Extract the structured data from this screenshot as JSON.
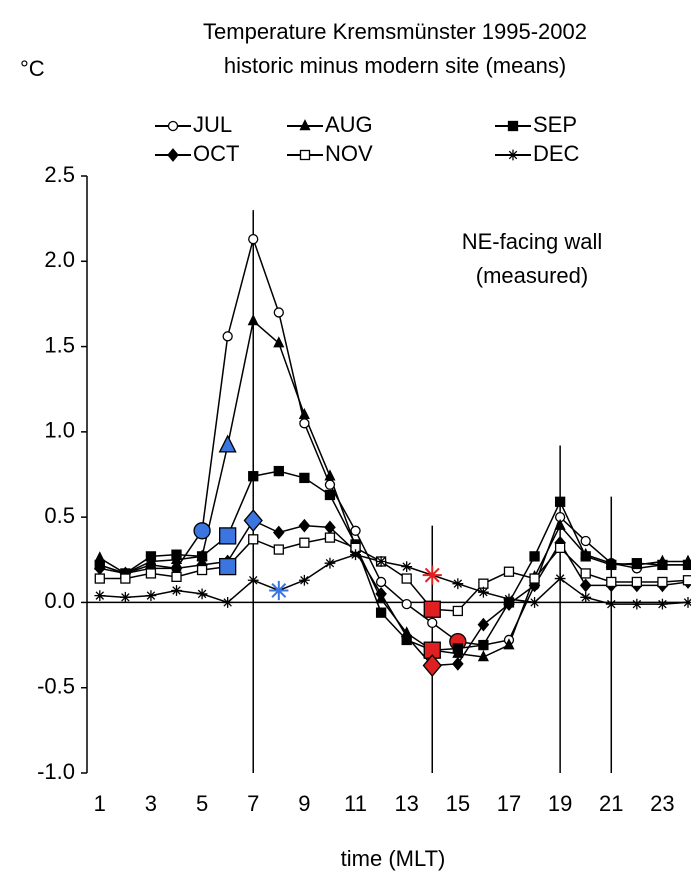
{
  "chart_data": {
    "type": "line",
    "title": [
      "Temperature Kremsmünster 1995-2002",
      "historic minus modern site (means)"
    ],
    "y_unit": "°C",
    "xlabel": "time (MLT)",
    "annotation": [
      "NE-facing wall",
      "(measured)"
    ],
    "x": [
      1,
      2,
      3,
      4,
      5,
      6,
      7,
      8,
      9,
      10,
      11,
      12,
      13,
      14,
      15,
      16,
      17,
      18,
      19,
      20,
      21,
      22,
      23,
      24
    ],
    "xlim": [
      0.5,
      24
    ],
    "xticks": [
      1,
      3,
      5,
      7,
      9,
      11,
      13,
      15,
      17,
      19,
      21,
      23
    ],
    "ylim": [
      -1,
      2.5
    ],
    "yticks": [
      {
        "value": -1,
        "label": "-1.0"
      },
      -0.5,
      {
        "value": 0,
        "label": "0.0"
      },
      0.5,
      {
        "value": 1,
        "label": "1.0"
      },
      1.5,
      {
        "value": 2,
        "label": "2.0"
      },
      2.5
    ],
    "grid": false,
    "color": "#000000",
    "vlines": [
      {
        "x": 7,
        "top": 2.3
      },
      {
        "x": 14,
        "top": 0.45
      },
      {
        "x": 19,
        "top": 0.92
      },
      {
        "x": 21,
        "top": 0.62
      }
    ],
    "series": [
      {
        "name": "JUL",
        "marker": "circle-open",
        "values": [
          0.22,
          0.17,
          0.22,
          0.2,
          0.42,
          1.56,
          2.13,
          1.7,
          1.05,
          0.69,
          0.42,
          0.12,
          -0.01,
          -0.12,
          -0.23,
          -0.25,
          -0.22,
          0.1,
          0.5,
          0.36,
          0.23,
          0.2,
          0.22,
          0.22
        ],
        "highlight_indices": [
          4,
          14
        ],
        "highlight_colors": [
          "#3a75e0",
          "#e02020"
        ]
      },
      {
        "name": "AUG",
        "marker": "triangle",
        "values": [
          0.26,
          0.17,
          0.24,
          0.25,
          0.27,
          0.92,
          1.65,
          1.52,
          1.1,
          0.74,
          0.33,
          0.02,
          -0.18,
          -0.28,
          -0.3,
          -0.32,
          -0.25,
          0.15,
          0.45,
          0.28,
          0.23,
          0.22,
          0.24,
          0.24
        ],
        "highlight_indices": [
          5,
          13
        ],
        "highlight_colors": [
          "#3a75e0",
          "#e02020"
        ]
      },
      {
        "name": "SEP",
        "marker": "square",
        "values": [
          0.22,
          0.17,
          0.27,
          0.28,
          0.27,
          0.39,
          0.74,
          0.77,
          0.73,
          0.63,
          0.34,
          -0.06,
          -0.22,
          -0.28,
          -0.27,
          -0.25,
          0.0,
          0.27,
          0.59,
          0.27,
          0.22,
          0.23,
          0.22,
          0.22
        ],
        "highlight_indices": [
          5,
          13
        ],
        "highlight_colors": [
          "#3a75e0",
          "#e02020"
        ]
      },
      {
        "name": "OCT",
        "marker": "diamond",
        "values": [
          0.2,
          0.17,
          0.2,
          0.2,
          0.22,
          0.24,
          0.48,
          0.41,
          0.45,
          0.44,
          0.3,
          0.05,
          -0.2,
          -0.37,
          -0.36,
          -0.13,
          -0.01,
          0.1,
          0.35,
          0.1,
          0.1,
          0.1,
          0.1,
          0.12
        ],
        "highlight_indices": [
          6,
          13
        ],
        "highlight_colors": [
          "#3a75e0",
          "#e02020"
        ]
      },
      {
        "name": "NOV",
        "marker": "square-open",
        "values": [
          0.14,
          0.14,
          0.17,
          0.15,
          0.19,
          0.21,
          0.37,
          0.31,
          0.35,
          0.38,
          0.32,
          0.24,
          0.14,
          -0.04,
          -0.05,
          0.11,
          0.18,
          0.14,
          0.32,
          0.17,
          0.12,
          0.12,
          0.12,
          0.13
        ],
        "highlight_indices": [
          5,
          13
        ],
        "highlight_colors": [
          "#3a75e0",
          "#e02020"
        ]
      },
      {
        "name": "DEC",
        "marker": "asterisk",
        "values": [
          0.04,
          0.03,
          0.04,
          0.07,
          0.05,
          0.0,
          0.13,
          0.07,
          0.13,
          0.23,
          0.28,
          0.24,
          0.21,
          0.16,
          0.11,
          0.06,
          0.02,
          0.0,
          0.14,
          0.03,
          -0.01,
          -0.01,
          -0.01,
          0.0
        ],
        "highlight_indices": [
          7,
          13
        ],
        "highlight_colors": [
          "#3a75e0",
          "#e02020"
        ]
      }
    ]
  }
}
